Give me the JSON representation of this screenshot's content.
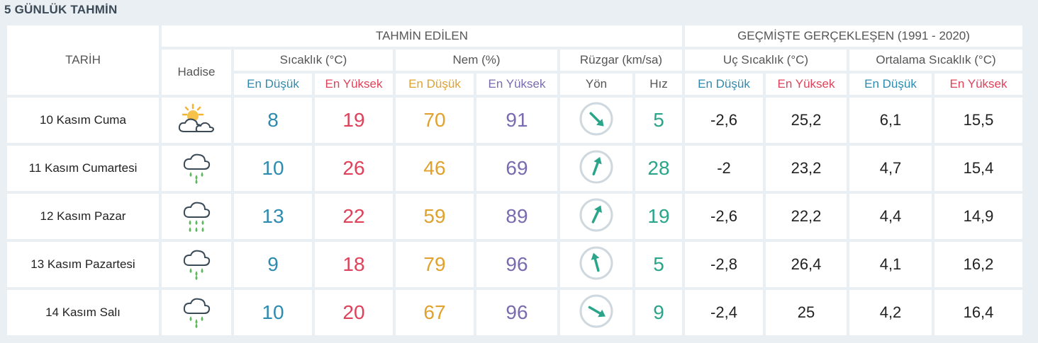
{
  "title": "5 GÜNLÜK TAHMİN",
  "header": {
    "date_col": "TARİH",
    "forecast_group": "TAHMİN EDİLEN",
    "history_group": "GEÇMİŞTE GERÇEKLEŞEN (1991 - 2020)",
    "event": "Hadise",
    "temp": "Sıcaklık (°C)",
    "humidity": "Nem (%)",
    "wind": "Rüzgar (km/sa)",
    "extreme_temp": "Uç Sıcaklık (°C)",
    "avg_temp": "Ortalama Sıcaklık (°C)",
    "min": "En Düşük",
    "max": "En Yüksek",
    "direction": "Yön",
    "speed": "Hız"
  },
  "colors": {
    "min": "#2e8bb0",
    "max": "#e0415a",
    "humidity_min": "#e0a12d",
    "humidity_max": "#7a6bb0",
    "wind_speed": "#2aa58a",
    "rain_drop": "#5cb85c"
  },
  "rows": [
    {
      "date": "10 Kasım Cuma",
      "icon": "partly-cloudy-sun-icon",
      "temp_min": "8",
      "temp_max": "19",
      "hum_min": "70",
      "hum_max": "91",
      "wind_dir_deg": 135,
      "wind_speed": "5",
      "ext_min": "-2,6",
      "ext_max": "25,2",
      "avg_min": "6,1",
      "avg_max": "15,5"
    },
    {
      "date": "11 Kasım Cumartesi",
      "icon": "rain-cloud-icon",
      "temp_min": "10",
      "temp_max": "26",
      "hum_min": "46",
      "hum_max": "69",
      "wind_dir_deg": 20,
      "wind_speed": "28",
      "ext_min": "-2",
      "ext_max": "23,2",
      "avg_min": "4,7",
      "avg_max": "15,4"
    },
    {
      "date": "12 Kasım Pazar",
      "icon": "heavy-rain-cloud-icon",
      "temp_min": "13",
      "temp_max": "22",
      "hum_min": "59",
      "hum_max": "89",
      "wind_dir_deg": 25,
      "wind_speed": "19",
      "ext_min": "-2,6",
      "ext_max": "22,2",
      "avg_min": "4,4",
      "avg_max": "14,9"
    },
    {
      "date": "13 Kasım Pazartesi",
      "icon": "rain-cloud-icon",
      "temp_min": "9",
      "temp_max": "18",
      "hum_min": "79",
      "hum_max": "96",
      "wind_dir_deg": 345,
      "wind_speed": "5",
      "ext_min": "-2,8",
      "ext_max": "26,4",
      "avg_min": "4,1",
      "avg_max": "16,2"
    },
    {
      "date": "14 Kasım Salı",
      "icon": "rain-cloud-icon",
      "temp_min": "10",
      "temp_max": "20",
      "hum_min": "67",
      "hum_max": "96",
      "wind_dir_deg": 120,
      "wind_speed": "9",
      "ext_min": "-2,4",
      "ext_max": "25",
      "avg_min": "4,2",
      "avg_max": "16,4"
    }
  ]
}
